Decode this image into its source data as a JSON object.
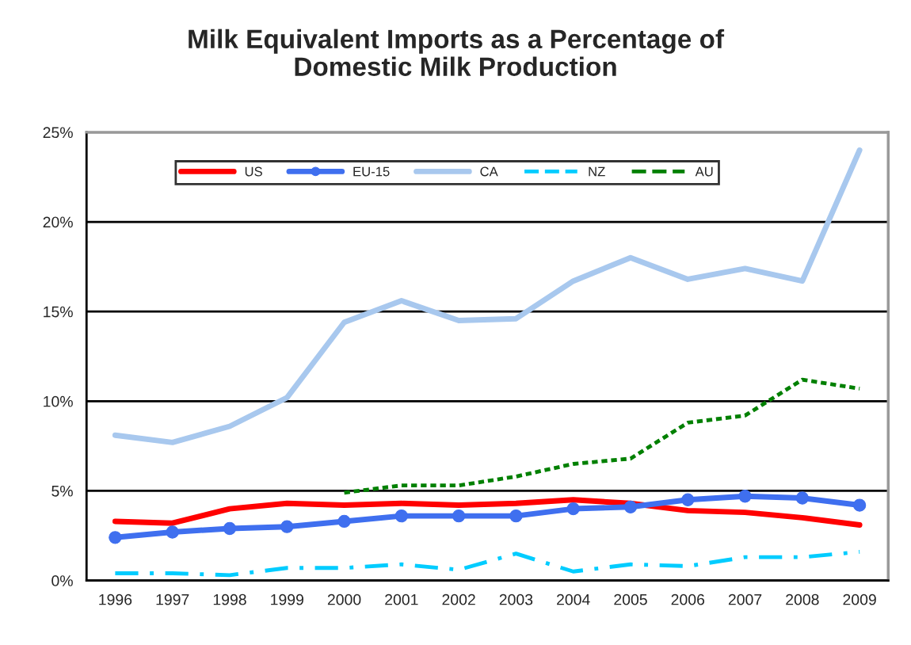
{
  "chart_data": {
    "type": "line",
    "title": "Milk Equivalent Imports as a Percentage of\nDomestic Milk Production",
    "categories": [
      "1996",
      "1997",
      "1998",
      "1999",
      "2000",
      "2001",
      "2002",
      "2003",
      "2004",
      "2005",
      "2006",
      "2007",
      "2008",
      "2009"
    ],
    "series": [
      {
        "name": "US",
        "color": "#ff0000",
        "line_style": "solid",
        "marker": "none",
        "values": [
          3.3,
          3.2,
          4.0,
          4.3,
          4.2,
          4.3,
          4.2,
          4.3,
          4.5,
          4.3,
          3.9,
          3.8,
          3.5,
          3.1
        ]
      },
      {
        "name": "EU-15",
        "color": "#3f6fef",
        "line_style": "solid",
        "marker": "circle",
        "values": [
          2.4,
          2.7,
          2.9,
          3.0,
          3.3,
          3.6,
          3.6,
          3.6,
          4.0,
          4.1,
          4.5,
          4.7,
          4.6,
          4.2
        ]
      },
      {
        "name": "CA",
        "color": "#a8c8ee",
        "line_style": "solid",
        "marker": "none",
        "values": [
          8.1,
          7.7,
          8.6,
          10.2,
          14.4,
          15.6,
          14.5,
          14.6,
          16.7,
          18.0,
          16.8,
          17.4,
          16.7,
          24.0
        ]
      },
      {
        "name": "NZ",
        "color": "#00ccff",
        "line_style": "dashdot",
        "marker": "none",
        "values": [
          0.4,
          0.4,
          0.3,
          0.7,
          0.7,
          0.9,
          0.6,
          1.5,
          0.5,
          0.9,
          0.8,
          1.3,
          1.3,
          1.6
        ]
      },
      {
        "name": "AU",
        "color": "#008000",
        "line_style": "dotted",
        "marker": "none",
        "values": [
          null,
          null,
          null,
          null,
          4.9,
          5.3,
          5.3,
          5.8,
          6.5,
          6.8,
          8.8,
          9.2,
          11.2,
          10.7
        ]
      }
    ],
    "ylim": [
      0,
      25
    ],
    "yticks": [
      {
        "value": 0,
        "label": "0%"
      },
      {
        "value": 5,
        "label": "5%"
      },
      {
        "value": 10,
        "label": "10%"
      },
      {
        "value": 15,
        "label": "15%"
      },
      {
        "value": 20,
        "label": "20%"
      },
      {
        "value": 25,
        "label": "25%"
      }
    ],
    "grid": "y",
    "legend": "top"
  }
}
